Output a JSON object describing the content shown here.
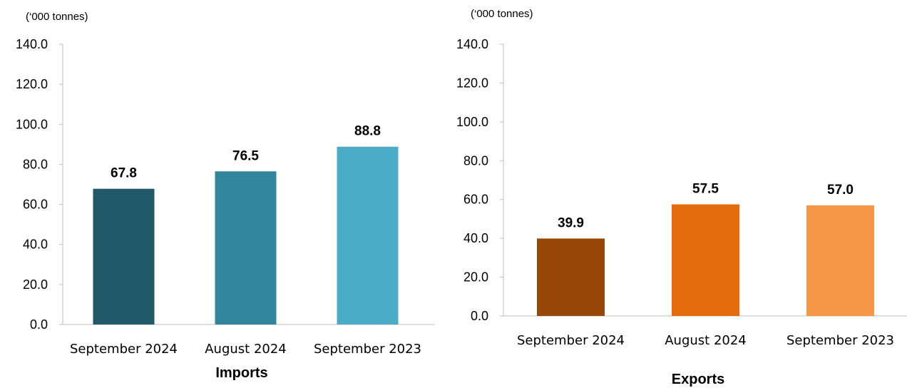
{
  "chart_data": [
    {
      "type": "bar",
      "title": "Imports",
      "unit_label": "(‘000 tonnes)",
      "categories": [
        "September 2024",
        "August 2024",
        "September 2023"
      ],
      "values": [
        67.8,
        76.5,
        88.8
      ],
      "value_labels": [
        "67.8",
        "76.5",
        "88.8"
      ],
      "colors": [
        "#215968",
        "#31859c",
        "#4bacc6"
      ],
      "ylim": [
        0,
        140
      ],
      "yticks": [
        "0.0",
        "20.0",
        "40.0",
        "60.0",
        "80.0",
        "100.0",
        "120.0",
        "140.0"
      ],
      "grid": false,
      "legend": "none"
    },
    {
      "type": "bar",
      "title": "Exports",
      "unit_label": "(‘000 tonnes)",
      "categories": [
        "September 2024",
        "August 2024",
        "September 2023"
      ],
      "values": [
        39.9,
        57.5,
        57.0
      ],
      "value_labels": [
        "39.9",
        "57.5",
        "57.0"
      ],
      "colors": [
        "#974706",
        "#e46c0a",
        "#f79646"
      ],
      "ylim": [
        0,
        140
      ],
      "yticks": [
        "0.0",
        "20.0",
        "40.0",
        "60.0",
        "80.0",
        "100.0",
        "120.0",
        "140.0"
      ],
      "grid": false,
      "legend": "none"
    }
  ]
}
